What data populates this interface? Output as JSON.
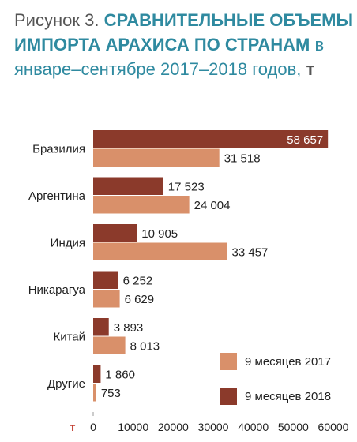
{
  "chart_data": {
    "type": "bar",
    "orientation": "horizontal",
    "title_prefix": "Рисунок 3.",
    "title_bold": "СРАВНИТЕЛЬНЫЕ ОБЪЕМЫ ИМПОРТА АРАХИСА ПО СТРАНАМ",
    "title_normal": "в январе–сентябре 2017–2018 годов,",
    "title_unit": "т",
    "categories": [
      "Бразилия",
      "Аргентина",
      "Индия",
      "Никарагуа",
      "Китай",
      "Другие"
    ],
    "series": [
      {
        "name": "9 месяцев 2018",
        "color": "#8b3a2b",
        "values": [
          58657,
          17523,
          10905,
          6252,
          3893,
          1860
        ],
        "labels": [
          "58 657",
          "17 523",
          "10 905",
          "6 252",
          "3 893",
          "1 860"
        ]
      },
      {
        "name": "9 месяцев 2017",
        "color": "#d9906a",
        "values": [
          31518,
          24004,
          33457,
          6629,
          8013,
          753
        ],
        "labels": [
          "31 518",
          "24 004",
          "33 457",
          "6 629",
          "8 013",
          "753"
        ]
      }
    ],
    "xlim": [
      0,
      60000
    ],
    "xticks": [
      0,
      10000,
      20000,
      30000,
      40000,
      50000,
      60000
    ],
    "x_unit": "т",
    "grid": false,
    "legend": [
      {
        "name": "9 месяцев 2017",
        "color": "#d9906a"
      },
      {
        "name": "9 месяцев 2018",
        "color": "#8b3a2b"
      }
    ],
    "legend_position": "bottom-right"
  }
}
